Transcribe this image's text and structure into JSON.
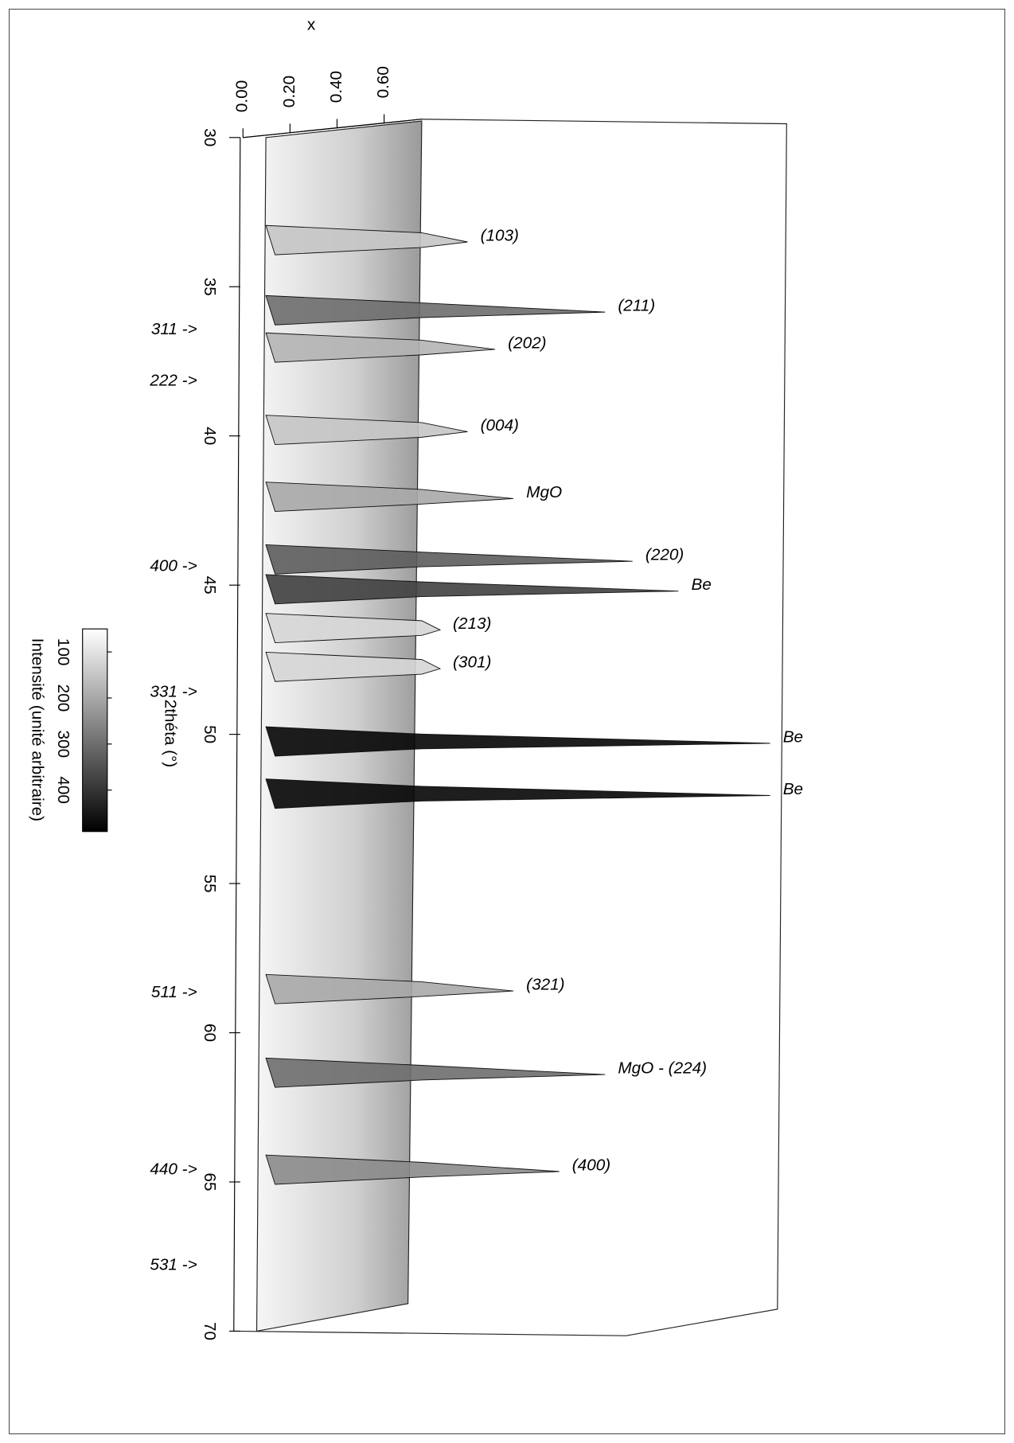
{
  "chart_data": {
    "type": "surface",
    "x_label": "x",
    "y_label": "2théta (°)",
    "color_label": "Intensité (unité arbitraire)",
    "ylim": [
      30,
      70
    ],
    "yticks": [
      30,
      35,
      40,
      45,
      50,
      55,
      60,
      65,
      70
    ],
    "xlim": [
      0,
      0.76
    ],
    "xticks": [
      {
        "value": 0,
        "label": "0.00"
      },
      {
        "value": 0.2,
        "label": "0.20"
      },
      {
        "value": 0.4,
        "label": "0.40"
      },
      {
        "value": 0.6,
        "label": "0.60"
      }
    ],
    "clim": [
      50,
      490
    ],
    "cticks": [
      100,
      200,
      300,
      400
    ],
    "peaks": [
      {
        "label": "(103)",
        "two_theta": 33.5,
        "intensity": 150
      },
      {
        "label": "(211)",
        "two_theta": 35.85,
        "intensity": 300
      },
      {
        "label": "(202)",
        "two_theta": 37.1,
        "intensity": 180
      },
      {
        "label": "(004)",
        "two_theta": 39.86,
        "intensity": 150
      },
      {
        "label": "MgO",
        "two_theta": 42.1,
        "intensity": 200
      },
      {
        "label": "(220)",
        "two_theta": 44.2,
        "intensity": 330
      },
      {
        "label": "Be",
        "two_theta": 45.2,
        "intensity": 380
      },
      {
        "label": "(213)",
        "two_theta": 46.5,
        "intensity": 120
      },
      {
        "label": "(301)",
        "two_theta": 47.8,
        "intensity": 120
      },
      {
        "label": "Be",
        "two_theta": 50.3,
        "intensity": 480
      },
      {
        "label": "Be",
        "two_theta": 52.05,
        "intensity": 480
      },
      {
        "label": "(321)",
        "two_theta": 58.6,
        "intensity": 200
      },
      {
        "label": "MgO - (224)",
        "two_theta": 61.4,
        "intensity": 300
      },
      {
        "label": "(400)",
        "two_theta": 64.65,
        "intensity": 250
      }
    ],
    "markers": [
      {
        "label": "311 ->",
        "two_theta": 36.45
      },
      {
        "label": "222 ->",
        "two_theta": 38.17
      },
      {
        "label": "400 ->",
        "two_theta": 44.38
      },
      {
        "label": "331 ->",
        "two_theta": 48.6
      },
      {
        "label": "511 ->",
        "two_theta": 58.66
      },
      {
        "label": "440 ->",
        "two_theta": 64.6
      },
      {
        "label": "531 ->",
        "two_theta": 67.8
      }
    ]
  }
}
